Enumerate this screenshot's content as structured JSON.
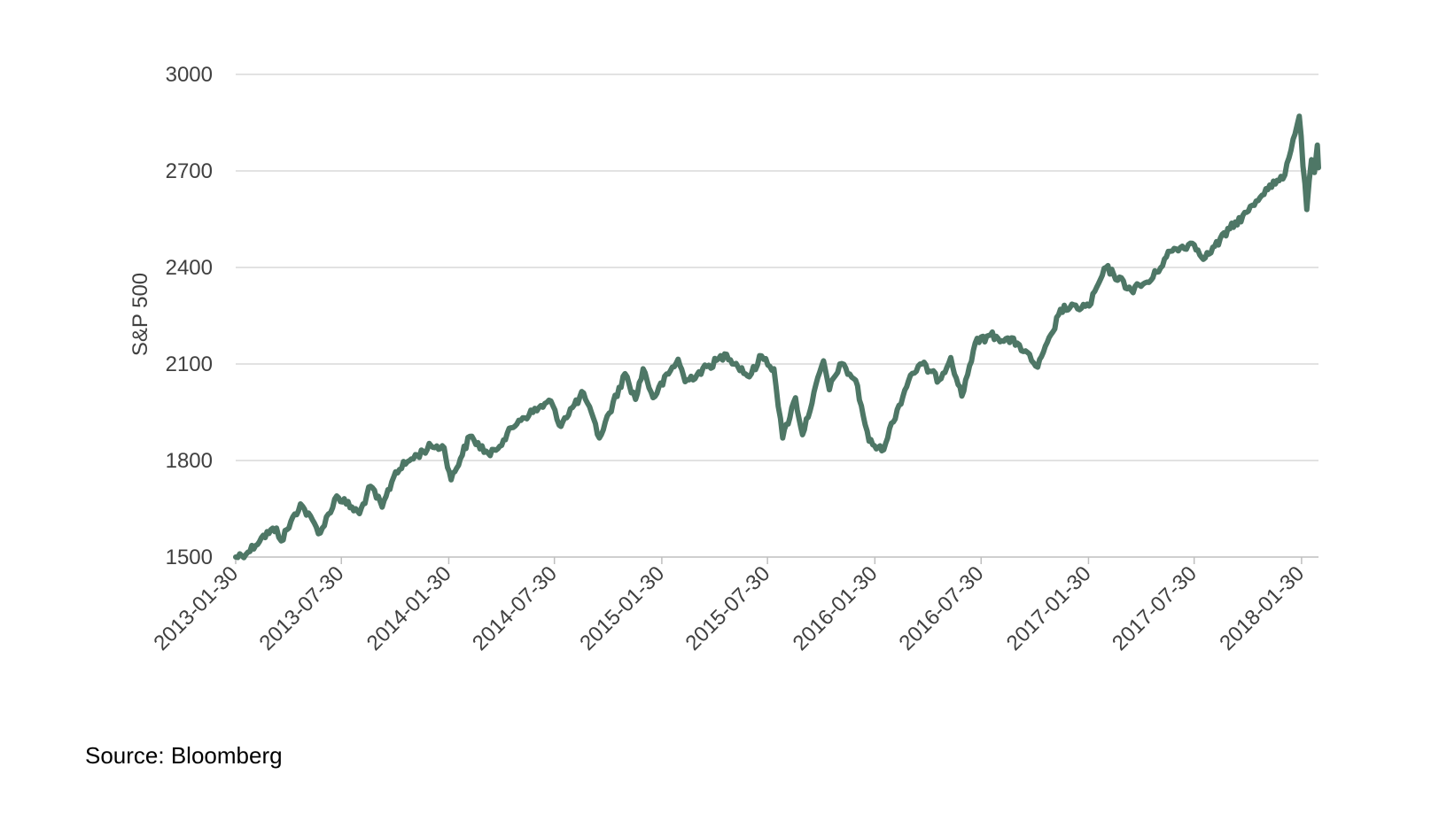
{
  "chart_data": {
    "type": "line",
    "ylabel": "S&P 500",
    "xlabel": "",
    "title": "",
    "ylim": [
      1500,
      3000
    ],
    "yticks": [
      1500,
      1800,
      2100,
      2400,
      2700,
      3000
    ],
    "xlim": [
      "2013-01-30",
      "2018-02-28"
    ],
    "xticks": [
      "2013-01-30",
      "2013-07-30",
      "2014-01-30",
      "2014-07-30",
      "2015-01-30",
      "2015-07-30",
      "2016-01-30",
      "2016-07-30",
      "2017-01-30",
      "2017-07-30",
      "2018-01-30"
    ],
    "grid": true,
    "line_color": "#4e7766",
    "series": [
      {
        "x": [
          "2013-01-30",
          "2013-02-20",
          "2013-03-15",
          "2013-04-10",
          "2013-04-18",
          "2013-05-21",
          "2013-06-24",
          "2013-07-22",
          "2013-08-30",
          "2013-09-18",
          "2013-10-08",
          "2013-10-31",
          "2013-11-27",
          "2013-12-31",
          "2014-01-22",
          "2014-02-03",
          "2014-03-07",
          "2014-04-11",
          "2014-05-30",
          "2014-07-24",
          "2014-08-07",
          "2014-09-18",
          "2014-10-15",
          "2014-11-28",
          "2014-12-16",
          "2014-12-29",
          "2015-01-15",
          "2015-02-27",
          "2015-03-11",
          "2015-05-21",
          "2015-06-29",
          "2015-07-20",
          "2015-08-10",
          "2015-08-25",
          "2015-09-16",
          "2015-09-28",
          "2015-11-03",
          "2015-11-13",
          "2015-12-01",
          "2015-12-28",
          "2016-01-20",
          "2016-02-11",
          "2016-03-31",
          "2016-04-20",
          "2016-05-19",
          "2016-06-08",
          "2016-06-27",
          "2016-07-20",
          "2016-08-15",
          "2016-09-30",
          "2016-11-04",
          "2016-11-30",
          "2016-12-13",
          "2017-01-31",
          "2017-03-01",
          "2017-04-13",
          "2017-05-17",
          "2017-06-19",
          "2017-07-27",
          "2017-08-18",
          "2017-09-29",
          "2017-10-31",
          "2017-11-30",
          "2017-12-29",
          "2018-01-26",
          "2018-02-08",
          "2018-02-16",
          "2018-02-21",
          "2018-02-26",
          "2018-02-28"
        ],
        "y": [
          1500,
          1515,
          1560,
          1590,
          1550,
          1665,
          1575,
          1690,
          1635,
          1720,
          1655,
          1765,
          1805,
          1845,
          1840,
          1740,
          1875,
          1815,
          1925,
          1985,
          1910,
          2010,
          1870,
          2070,
          1990,
          2085,
          1995,
          2115,
          2045,
          2130,
          2060,
          2125,
          2085,
          1870,
          1995,
          1880,
          2110,
          2020,
          2100,
          2050,
          1860,
          1830,
          2065,
          2100,
          2050,
          2120,
          2000,
          2165,
          2190,
          2165,
          2090,
          2200,
          2270,
          2280,
          2400,
          2330,
          2360,
          2450,
          2475,
          2430,
          2520,
          2575,
          2645,
          2675,
          2870,
          2580,
          2735,
          2695,
          2780,
          2710
        ]
      }
    ]
  },
  "source_note": "Source: Bloomberg"
}
